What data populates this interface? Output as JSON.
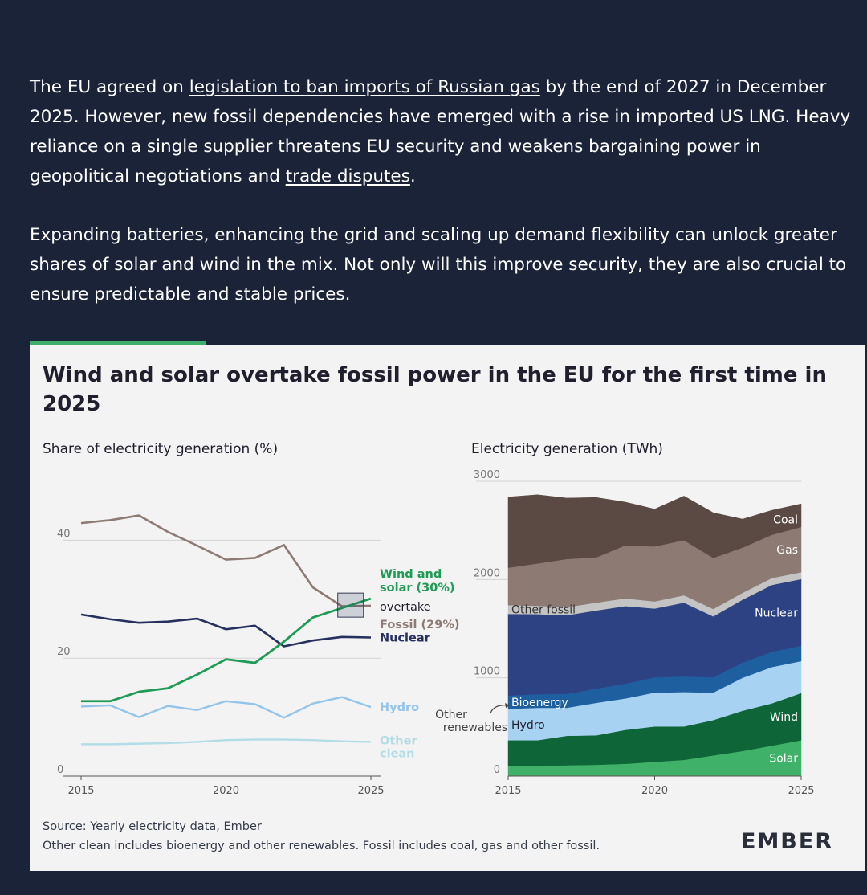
{
  "intro": {
    "p1_a": "The EU agreed on ",
    "p1_link": "legislation to ban imports of Russian gas",
    "p1_b": " by the end of 2027 in December 2025. However, new fossil dependencies have emerged with a rise in imported US LNG. Heavy reliance on a single supplier threatens EU security and weakens bargaining power in geopolitical negotiations and ",
    "p1_link2": "trade disputes",
    "p1_c": ".",
    "p2": "Expanding batteries, enhancing the grid and scaling up demand flexibility can unlock greater shares of solar and wind in the mix. Not only will this improve security, they are also crucial to ensure predictable and stable prices."
  },
  "card": {
    "title": "Wind and solar overtake fossil power in the EU for the first time in 2025",
    "left_subtitle": "Share of electricity generation (%)",
    "right_subtitle": "Electricity generation (TWh)",
    "source": "Source: Yearly electricity data, Ember",
    "note": "Other clean includes bioenergy and other renewables. Fossil includes coal, gas and other fossil.",
    "logo": "EMBER",
    "annot_ws_1": "Wind and",
    "annot_ws_2": "solar (30%)",
    "annot_overtake": "overtake",
    "annot_fossil": "Fossil (29%)",
    "annot_other_ren_1": "Other",
    "annot_other_ren_2": "renewables"
  },
  "colors": {
    "fossil": "#8d7a72",
    "nuclear": "#26305e",
    "windsolar": "#1f9b55",
    "hydro": "#93c4ea",
    "otherclean": "#b3dde6",
    "coal": "#5b4a44",
    "gas": "#8d7a72",
    "otherfossil": "#c4c4c4",
    "nuclear_area": "#2d4283",
    "bioenergy": "#1e5fa0",
    "hydro_area": "#a8d2f1",
    "wind": "#0e6638",
    "solar": "#40b168"
  },
  "chart_data": [
    {
      "type": "line",
      "title": "Share of electricity generation (%)",
      "x": [
        2015,
        2016,
        2017,
        2018,
        2019,
        2020,
        2021,
        2022,
        2023,
        2024,
        2025
      ],
      "xticks": [
        2015,
        2020,
        2025
      ],
      "yticks": [
        0,
        20,
        40
      ],
      "ylim": [
        0,
        50
      ],
      "series": [
        {
          "name": "Fossil",
          "values": [
            42.9,
            43.4,
            44.2,
            41.4,
            39.1,
            36.7,
            37.0,
            39.2,
            32.0,
            28.8,
            28.9
          ]
        },
        {
          "name": "Nuclear",
          "values": [
            27.4,
            26.6,
            26.0,
            26.2,
            26.7,
            24.9,
            25.5,
            22.0,
            23.0,
            23.6,
            23.5
          ]
        },
        {
          "name": "Wind and solar",
          "values": [
            12.7,
            12.7,
            14.3,
            14.9,
            17.2,
            19.8,
            19.2,
            22.8,
            26.9,
            28.5,
            30.1
          ]
        },
        {
          "name": "Hydro",
          "values": [
            11.8,
            12.0,
            10.0,
            11.9,
            11.2,
            12.7,
            12.2,
            9.9,
            12.3,
            13.4,
            11.7
          ]
        },
        {
          "name": "Other clean",
          "values": [
            5.4,
            5.4,
            5.5,
            5.6,
            5.8,
            6.1,
            6.2,
            6.2,
            6.1,
            5.9,
            5.8
          ]
        }
      ],
      "series_labels": [
        "Wind and solar (30%)",
        "Fossil (29%)",
        "Nuclear",
        "Hydro",
        "Other clean"
      ]
    },
    {
      "type": "area",
      "title": "Electricity generation (TWh)",
      "stacked": true,
      "x": [
        2015,
        2016,
        2017,
        2018,
        2019,
        2020,
        2021,
        2022,
        2023,
        2024,
        2025
      ],
      "xticks": [
        2015,
        2020,
        2025
      ],
      "yticks": [
        0,
        1000,
        2000,
        3000
      ],
      "ylim": [
        0,
        3000
      ],
      "series": [
        {
          "name": "Solar",
          "values": [
            105,
            105,
            110,
            115,
            125,
            145,
            165,
            210,
            255,
            310,
            365
          ]
        },
        {
          "name": "Wind",
          "values": [
            260,
            260,
            300,
            300,
            345,
            360,
            340,
            360,
            410,
            430,
            480
          ]
        },
        {
          "name": "Hydro",
          "values": [
            320,
            330,
            285,
            330,
            320,
            345,
            350,
            280,
            335,
            370,
            325
          ]
        },
        {
          "name": "Bioenergy",
          "values": [
            135,
            138,
            142,
            145,
            150,
            155,
            160,
            155,
            155,
            155,
            155
          ]
        },
        {
          "name": "Nuclear",
          "values": [
            830,
            815,
            800,
            795,
            790,
            700,
            750,
            620,
            640,
            680,
            680
          ]
        },
        {
          "name": "Other fossil",
          "values": [
            90,
            85,
            82,
            80,
            78,
            72,
            75,
            75,
            70,
            70,
            70
          ]
        },
        {
          "name": "Gas",
          "values": [
            380,
            430,
            490,
            460,
            540,
            560,
            560,
            520,
            460,
            440,
            460
          ]
        },
        {
          "name": "Coal",
          "values": [
            720,
            700,
            620,
            610,
            440,
            380,
            450,
            460,
            290,
            250,
            235
          ]
        }
      ],
      "series_labels": [
        "Coal",
        "Gas",
        "Other fossil",
        "Nuclear",
        "Bioenergy",
        "Hydro",
        "Wind",
        "Solar"
      ]
    }
  ]
}
